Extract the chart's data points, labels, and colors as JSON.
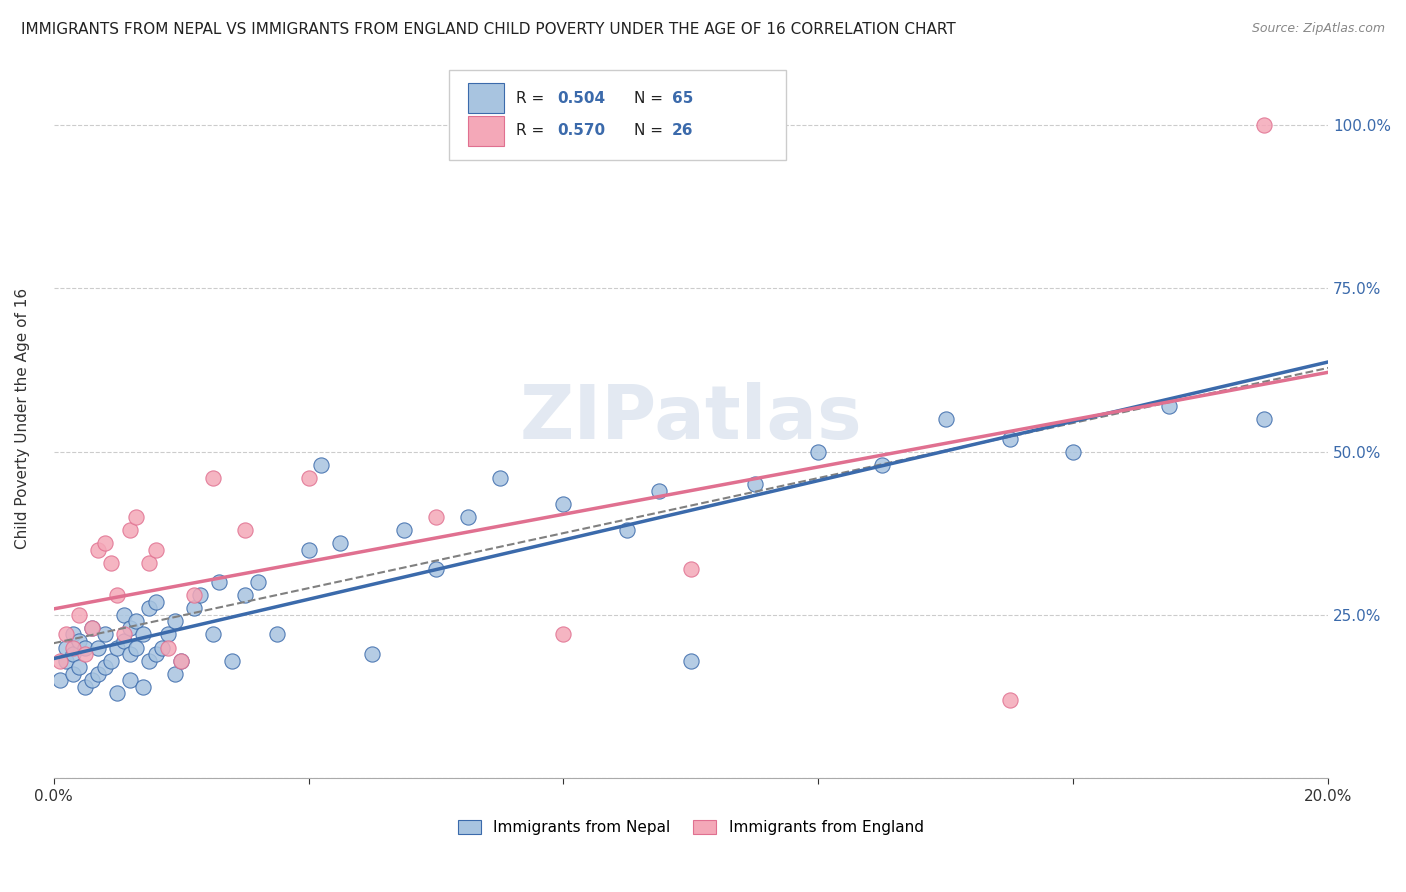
{
  "title": "IMMIGRANTS FROM NEPAL VS IMMIGRANTS FROM ENGLAND CHILD POVERTY UNDER THE AGE OF 16 CORRELATION CHART",
  "source": "Source: ZipAtlas.com",
  "ylabel": "Child Poverty Under the Age of 16",
  "xmin": 0.0,
  "xmax": 0.2,
  "ymin": 0.0,
  "ymax": 1.1,
  "ytick_labels": [
    "",
    "25.0%",
    "50.0%",
    "75.0%",
    "100.0%"
  ],
  "ytick_values": [
    0.0,
    0.25,
    0.5,
    0.75,
    1.0
  ],
  "xtick_labels": [
    "0.0%",
    "",
    "",
    "",
    "",
    "20.0%"
  ],
  "xtick_values": [
    0.0,
    0.04,
    0.08,
    0.12,
    0.16,
    0.2
  ],
  "nepal_R": "0.504",
  "nepal_N": "65",
  "england_R": "0.570",
  "england_N": "26",
  "nepal_color": "#a8c4e0",
  "england_color": "#f4a8b8",
  "nepal_line_color": "#3b6aab",
  "england_line_color": "#e07090",
  "legend_value_color": "#3b6aab",
  "nepal_scatter_x": [
    0.001,
    0.002,
    0.002,
    0.003,
    0.003,
    0.003,
    0.004,
    0.004,
    0.005,
    0.005,
    0.006,
    0.006,
    0.007,
    0.007,
    0.008,
    0.008,
    0.009,
    0.01,
    0.01,
    0.011,
    0.011,
    0.012,
    0.012,
    0.012,
    0.013,
    0.013,
    0.014,
    0.014,
    0.015,
    0.015,
    0.016,
    0.016,
    0.017,
    0.018,
    0.019,
    0.019,
    0.02,
    0.022,
    0.023,
    0.025,
    0.026,
    0.028,
    0.03,
    0.032,
    0.035,
    0.04,
    0.042,
    0.045,
    0.05,
    0.055,
    0.06,
    0.065,
    0.07,
    0.08,
    0.09,
    0.095,
    0.1,
    0.11,
    0.12,
    0.13,
    0.14,
    0.15,
    0.16,
    0.175,
    0.19
  ],
  "nepal_scatter_y": [
    0.15,
    0.18,
    0.2,
    0.16,
    0.19,
    0.22,
    0.17,
    0.21,
    0.14,
    0.2,
    0.15,
    0.23,
    0.16,
    0.2,
    0.17,
    0.22,
    0.18,
    0.13,
    0.2,
    0.21,
    0.25,
    0.15,
    0.19,
    0.23,
    0.2,
    0.24,
    0.14,
    0.22,
    0.18,
    0.26,
    0.19,
    0.27,
    0.2,
    0.22,
    0.16,
    0.24,
    0.18,
    0.26,
    0.28,
    0.22,
    0.3,
    0.18,
    0.28,
    0.3,
    0.22,
    0.35,
    0.48,
    0.36,
    0.19,
    0.38,
    0.32,
    0.4,
    0.46,
    0.42,
    0.38,
    0.44,
    0.18,
    0.45,
    0.5,
    0.48,
    0.55,
    0.52,
    0.5,
    0.57,
    0.55
  ],
  "england_scatter_x": [
    0.001,
    0.002,
    0.003,
    0.004,
    0.005,
    0.006,
    0.007,
    0.008,
    0.009,
    0.01,
    0.011,
    0.012,
    0.013,
    0.015,
    0.016,
    0.018,
    0.02,
    0.022,
    0.025,
    0.03,
    0.04,
    0.06,
    0.08,
    0.1,
    0.15,
    0.19
  ],
  "england_scatter_y": [
    0.18,
    0.22,
    0.2,
    0.25,
    0.19,
    0.23,
    0.35,
    0.36,
    0.33,
    0.28,
    0.22,
    0.38,
    0.4,
    0.33,
    0.35,
    0.2,
    0.18,
    0.28,
    0.46,
    0.38,
    0.46,
    0.4,
    0.22,
    0.32,
    0.12,
    1.0
  ],
  "watermark": "ZIPatlas",
  "bottom_legend_nepal": "Immigrants from Nepal",
  "bottom_legend_england": "Immigrants from England"
}
